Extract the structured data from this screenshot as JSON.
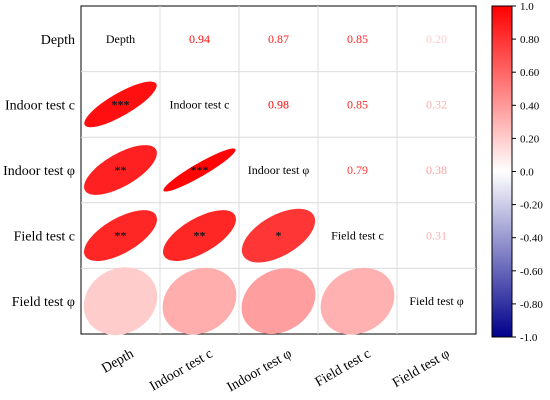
{
  "chart_data": {
    "type": "heatmap",
    "variables": [
      "Depth",
      "Indoor test c",
      "Indoor test φ",
      "Field test c",
      "Field test φ"
    ],
    "correlations": [
      [
        1.0,
        0.94,
        0.87,
        0.85,
        0.2
      ],
      [
        0.94,
        1.0,
        0.98,
        0.85,
        0.32
      ],
      [
        0.87,
        0.98,
        1.0,
        0.79,
        0.38
      ],
      [
        0.85,
        0.85,
        0.79,
        1.0,
        0.31
      ],
      [
        0.2,
        0.32,
        0.38,
        0.31,
        1.0
      ]
    ],
    "upper_labels": [
      {
        "row": 0,
        "col": 1,
        "text": "0.94"
      },
      {
        "row": 0,
        "col": 2,
        "text": "0.87"
      },
      {
        "row": 0,
        "col": 3,
        "text": "0.85"
      },
      {
        "row": 0,
        "col": 4,
        "text": "0.20"
      },
      {
        "row": 1,
        "col": 2,
        "text": "0.98"
      },
      {
        "row": 1,
        "col": 3,
        "text": "0.85"
      },
      {
        "row": 1,
        "col": 4,
        "text": "0.32"
      },
      {
        "row": 2,
        "col": 3,
        "text": "0.79"
      },
      {
        "row": 2,
        "col": 4,
        "text": "0.38"
      },
      {
        "row": 3,
        "col": 4,
        "text": "0.31"
      }
    ],
    "significance": [
      {
        "row": 1,
        "col": 0,
        "text": "***"
      },
      {
        "row": 2,
        "col": 0,
        "text": "**"
      },
      {
        "row": 2,
        "col": 1,
        "text": "***"
      },
      {
        "row": 3,
        "col": 0,
        "text": "**"
      },
      {
        "row": 3,
        "col": 1,
        "text": "**"
      },
      {
        "row": 3,
        "col": 2,
        "text": "*"
      }
    ],
    "colorbar": {
      "min": -1.0,
      "max": 1.0,
      "ticks": [
        "1.0",
        "0.80",
        "0.60",
        "0.40",
        "0.20",
        "0.0",
        "-0.20",
        "-0.40",
        "-0.60",
        "-0.80",
        "-1.0"
      ],
      "colors": {
        "positive": "#ff0000",
        "neutral": "#ffffff",
        "negative": "#00008b"
      }
    },
    "grid": true,
    "legend_position": "right"
  }
}
